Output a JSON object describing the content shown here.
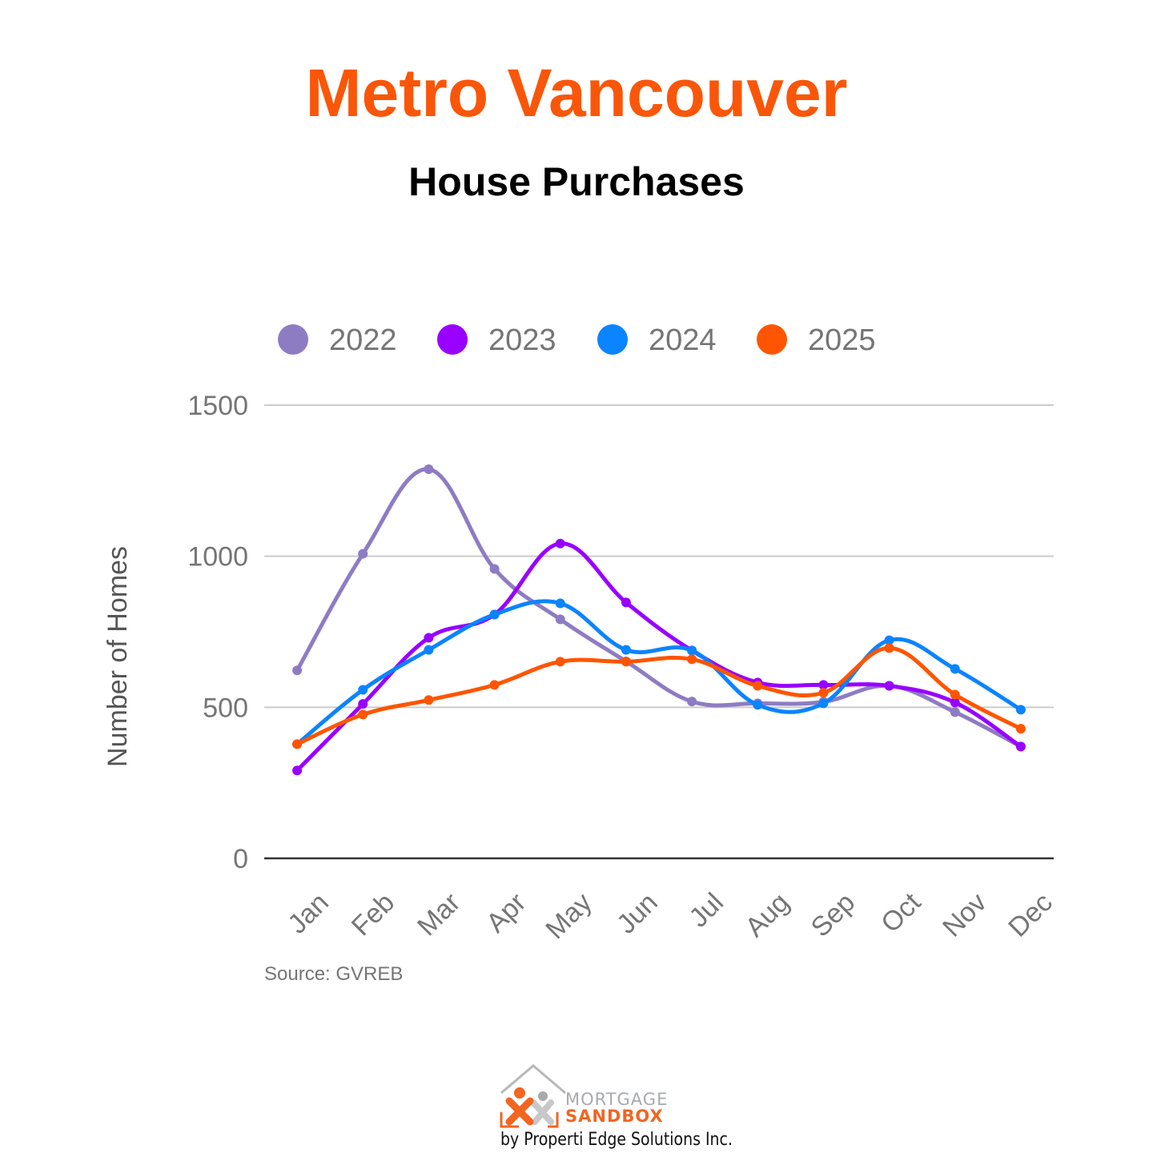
{
  "header": {
    "title": "Metro Vancouver",
    "subtitle": "House Purchases"
  },
  "colors": {
    "title": "#fa5609",
    "grid": "#cccccc",
    "axis_text": "#757575",
    "baseline": "#333333"
  },
  "footer": {
    "logo_line1": "MORTGAGE",
    "logo_line2": "SANDBOX",
    "byline": "by Properti Edge Solutions Inc."
  },
  "chart_data": {
    "type": "line",
    "title": "House Purchases",
    "xlabel": "",
    "ylabel": "Number of Homes",
    "source": "Source: GVREB",
    "categories": [
      "Jan",
      "Feb",
      "Mar",
      "Apr",
      "May",
      "Jun",
      "Jul",
      "Aug",
      "Sep",
      "Oct",
      "Nov",
      "Dec"
    ],
    "ylim": [
      0,
      1500
    ],
    "yticks": [
      0,
      500,
      1000,
      1500
    ],
    "grid": true,
    "legend_position": "top",
    "smooth": true,
    "series": [
      {
        "name": "2022",
        "color": "#8e7cc3",
        "values": [
          622,
          1008,
          1288,
          958,
          791,
          652,
          519,
          513,
          518,
          571,
          484,
          370
        ]
      },
      {
        "name": "2023",
        "color": "#9900ff",
        "values": [
          291,
          511,
          730,
          807,
          1042,
          847,
          688,
          582,
          574,
          571,
          516,
          370
        ]
      },
      {
        "name": "2024",
        "color": "#0b84ff",
        "values": [
          378,
          558,
          690,
          807,
          844,
          690,
          688,
          508,
          513,
          722,
          627,
          492
        ]
      },
      {
        "name": "2025",
        "color": "#ff5500",
        "values": [
          378,
          476,
          524,
          574,
          651,
          651,
          659,
          571,
          548,
          696,
          542,
          429
        ]
      }
    ]
  }
}
